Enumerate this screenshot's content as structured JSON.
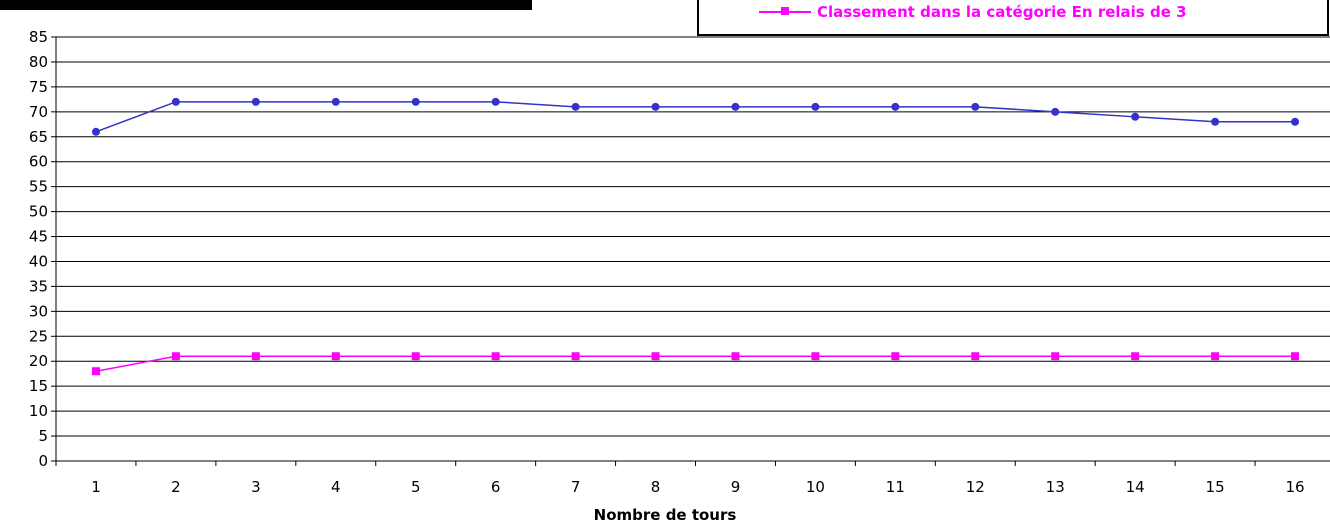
{
  "chart_data": {
    "type": "line",
    "x": [
      1,
      2,
      3,
      4,
      5,
      6,
      7,
      8,
      9,
      10,
      11,
      12,
      13,
      14,
      15,
      16
    ],
    "xlabel": "Nombre de tours",
    "ylabel": "",
    "ylim": [
      0,
      85
    ],
    "ytick_step": 5,
    "grid": "horizontal",
    "legend_placement": "top-right",
    "series": [
      {
        "name": "",
        "color": "#3333cc",
        "marker": "circle",
        "values": [
          66,
          72,
          72,
          72,
          72,
          72,
          71,
          71,
          71,
          71,
          71,
          71,
          70,
          69,
          68,
          68
        ]
      },
      {
        "name": "Classement dans la catégorie En relais de 3",
        "color": "#ff00ff",
        "marker": "square",
        "values": [
          18,
          21,
          21,
          21,
          21,
          21,
          21,
          21,
          21,
          21,
          21,
          21,
          21,
          21,
          21,
          21
        ]
      }
    ]
  }
}
